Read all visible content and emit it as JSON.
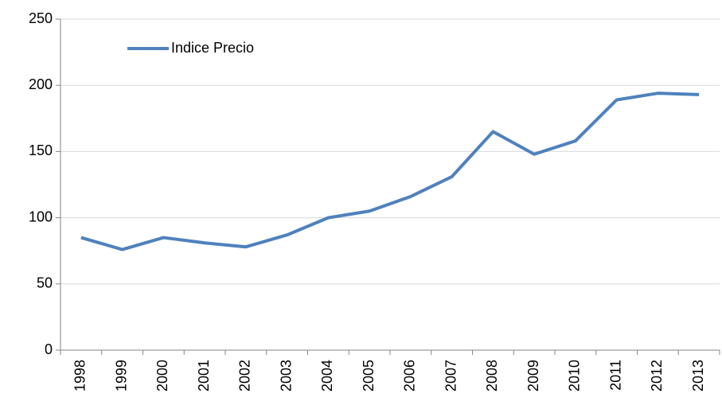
{
  "chart_data": {
    "type": "line",
    "categories": [
      "1998",
      "1999",
      "2000",
      "2001",
      "2002",
      "2003",
      "2004",
      "2005",
      "2006",
      "2007",
      "2008",
      "2009",
      "2010",
      "2011",
      "2012",
      "2013"
    ],
    "series": [
      {
        "name": "Indice Precio",
        "color": "#4f81bd",
        "values": [
          85,
          76,
          85,
          81,
          78,
          87,
          100,
          105,
          116,
          131,
          165,
          148,
          158,
          189,
          194,
          193
        ]
      }
    ],
    "ylim": [
      0,
      250
    ],
    "yticks": [
      0,
      50,
      100,
      150,
      200,
      250
    ],
    "grid": true,
    "legend": "top-left"
  }
}
